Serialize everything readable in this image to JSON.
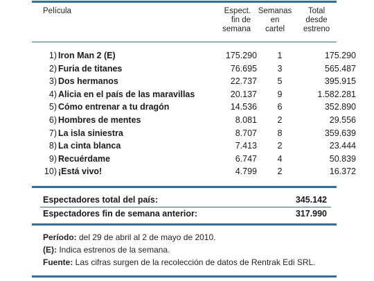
{
  "header": {
    "pelicula": "Película",
    "espect_1": "Espect.",
    "espect_2": "fin de",
    "espect_3": "semana",
    "semanas_1": "Semanas",
    "semanas_2": "en",
    "semanas_3": "cartel",
    "total_1": "Total",
    "total_2": "desde",
    "total_3": "estreno"
  },
  "rows": [
    {
      "num": "1)",
      "title": "Iron Man 2 (E)",
      "fin": "175.290",
      "sem": "1",
      "tot": "175.290"
    },
    {
      "num": "2)",
      "title": "Furia de titanes",
      "fin": "76.695",
      "sem": "3",
      "tot": "565.487"
    },
    {
      "num": "3)",
      "title": "Dos hermanos",
      "fin": "22.737",
      "sem": "5",
      "tot": "395.915"
    },
    {
      "num": "4)",
      "title": "Alicia en el país de las maravillas",
      "fin": "20.137",
      "sem": "9",
      "tot": "1.582.281"
    },
    {
      "num": "5)",
      "title": "Cómo entrenar a tu dragón",
      "fin": "14.536",
      "sem": "6",
      "tot": "352.890"
    },
    {
      "num": "6)",
      "title": "Hombres de mentes",
      "fin": "8.081",
      "sem": "2",
      "tot": "29.556"
    },
    {
      "num": "7)",
      "title": "La isla siniestra",
      "fin": "8.707",
      "sem": "8",
      "tot": "359.639"
    },
    {
      "num": "8)",
      "title": "La cinta blanca",
      "fin": "7.413",
      "sem": "2",
      "tot": "23.444"
    },
    {
      "num": "9)",
      "title": "Recuérdame",
      "fin": "6.747",
      "sem": "4",
      "tot": "50.839"
    },
    {
      "num": "10)",
      "title": "¡Está vivo!",
      "fin": "4.799",
      "sem": "2",
      "tot": "16.372"
    }
  ],
  "summary": {
    "total_label": "Espectadores total del país:",
    "total_value": "345.142",
    "anterior_label": "Espectadores fin de semana anterior:",
    "anterior_value": "317.990"
  },
  "notes": {
    "periodo_label": "Período:",
    "periodo_text": " del 29 de abril al 2 de mayo de 2010.",
    "estreno_label": "(E):",
    "estreno_text": " Indica estrenos de la semana.",
    "fuente_label": "Fuente:",
    "fuente_text": " Las cifras surgen de la recolección de datos de Rentrak Edi SRL."
  },
  "colors": {
    "rule": "#2b6fa5"
  }
}
